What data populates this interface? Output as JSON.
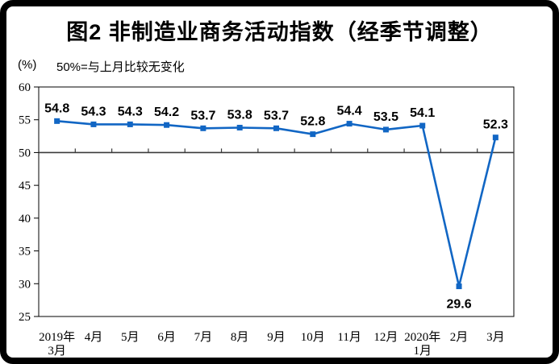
{
  "chart_data": {
    "type": "line",
    "title": "图2 非制造业商务活动指数（经季节调整）",
    "unit_label": "(%)",
    "note": "50%=与上月比较无变化",
    "categories": [
      [
        "2019年",
        "3月"
      ],
      [
        "4月"
      ],
      [
        "5月"
      ],
      [
        "6月"
      ],
      [
        "7月"
      ],
      [
        "8月"
      ],
      [
        "9月"
      ],
      [
        "10月"
      ],
      [
        "11月"
      ],
      [
        "12月"
      ],
      [
        "2020年",
        "1月"
      ],
      [
        "2月"
      ],
      [
        "3月"
      ]
    ],
    "values": [
      54.8,
      54.3,
      54.3,
      54.2,
      53.7,
      53.8,
      53.7,
      52.8,
      54.4,
      53.5,
      54.1,
      29.6,
      52.3
    ],
    "data_label_positions": [
      "above",
      "above",
      "above",
      "above",
      "above",
      "above",
      "above",
      "above",
      "above",
      "above",
      "above",
      "below",
      "above"
    ],
    "y_axis": {
      "min": 25,
      "max": 60,
      "tick_step": 5,
      "ticks": [
        60,
        55,
        50,
        45,
        40,
        35,
        30,
        25
      ]
    },
    "x_axis_cross_value": 50,
    "grid": false,
    "legend": "none",
    "marker": "square",
    "colors": {
      "series": "#1166C4",
      "axis": "#000000",
      "cross_axis": "#3a3a3a",
      "text": "#000000",
      "frame_border": "#000000",
      "background": "#ffffff"
    }
  }
}
